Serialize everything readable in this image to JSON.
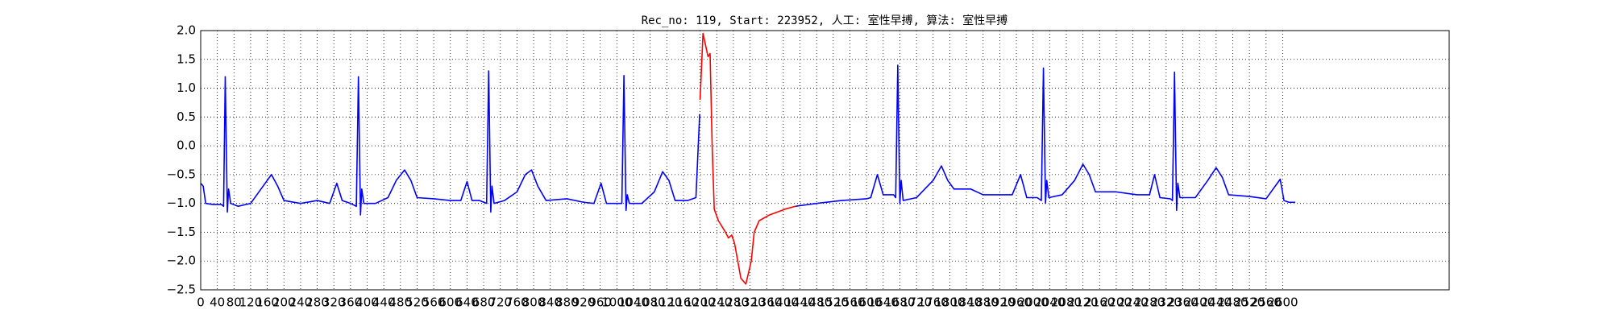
{
  "chart_data": {
    "type": "line",
    "title": "Rec_no: 119, Start: 223952, 人工: 室性早搏, 算法: 室性早搏",
    "x": [
      0,
      6,
      12,
      30,
      50,
      55,
      59,
      64,
      67,
      72,
      90,
      120,
      150,
      170,
      185,
      200,
      240,
      280,
      310,
      327,
      340,
      360,
      374,
      379,
      384,
      387,
      392,
      420,
      450,
      470,
      490,
      505,
      520,
      560,
      600,
      625,
      640,
      652,
      670,
      687,
      692,
      697,
      700,
      705,
      730,
      760,
      780,
      795,
      810,
      830,
      880,
      920,
      945,
      962,
      975,
      1000,
      1012,
      1017,
      1022,
      1025,
      1030,
      1060,
      1090,
      1110,
      1125,
      1140,
      1170,
      1190,
      1199,
      1200,
      1207,
      1219,
      1224,
      1229,
      1234,
      1244,
      1261,
      1268,
      1276,
      1283,
      1298,
      1310,
      1323,
      1330,
      1342,
      1367,
      1404,
      1429,
      1480,
      1540,
      1600,
      1610,
      1626,
      1640,
      1665,
      1670,
      1675,
      1680,
      1683,
      1688,
      1720,
      1760,
      1780,
      1795,
      1810,
      1850,
      1880,
      1920,
      1950,
      1970,
      1985,
      2010,
      2020,
      2025,
      2030,
      2033,
      2038,
      2070,
      2100,
      2120,
      2135,
      2150,
      2200,
      2250,
      2280,
      2292,
      2305,
      2330,
      2335,
      2340,
      2345,
      2348,
      2353,
      2390,
      2420,
      2440,
      2455,
      2470,
      2520,
      2560,
      2594,
      2603,
      2615,
      2630
    ],
    "series": [
      {
        "color": "#0000ff",
        "values": [
          -0.65,
          -0.7,
          -1.0,
          -1.02,
          -1.02,
          -1.05,
          1.2,
          -1.15,
          -0.75,
          -1.0,
          -1.05,
          -1.0,
          -0.7,
          -0.5,
          -0.7,
          -0.95,
          -1.0,
          -0.95,
          -1.0,
          -0.65,
          -0.95,
          -1.0,
          -1.05,
          1.2,
          -1.2,
          -0.75,
          -1.0,
          -1.0,
          -0.9,
          -0.6,
          -0.42,
          -0.6,
          -0.9,
          -0.92,
          -0.95,
          -0.95,
          -0.62,
          -0.95,
          -0.95,
          -1.0,
          1.3,
          -1.15,
          -0.7,
          -1.0,
          -0.95,
          -0.8,
          -0.5,
          -0.42,
          -0.7,
          -0.95,
          -0.92,
          -0.98,
          -1.0,
          -0.65,
          -1.0,
          -1.0,
          -1.0,
          1.22,
          -1.12,
          -0.85,
          -1.0,
          -1.0,
          -0.8,
          -0.45,
          -0.6,
          -0.95,
          -0.95,
          -0.9,
          0.55,
          null,
          null,
          null,
          null,
          null,
          null,
          null,
          null,
          null,
          null,
          null,
          null,
          null,
          null,
          null,
          null,
          null,
          null,
          -1.05,
          -1.0,
          -0.95,
          -0.92,
          -0.9,
          -0.5,
          -0.85,
          -0.85,
          -0.9,
          1.4,
          -1.0,
          -0.6,
          -0.95,
          -0.9,
          -0.6,
          -0.35,
          -0.6,
          -0.75,
          -0.75,
          -0.85,
          -0.85,
          -0.85,
          -0.5,
          -0.9,
          -0.9,
          -0.95,
          1.35,
          -1.0,
          -0.6,
          -0.9,
          -0.85,
          -0.6,
          -0.32,
          -0.5,
          -0.8,
          -0.8,
          -0.85,
          -0.85,
          -0.5,
          -0.9,
          -0.92,
          -0.95,
          1.28,
          -1.12,
          -0.65,
          -0.9,
          -0.9,
          -0.6,
          -0.38,
          -0.55,
          -0.85,
          -0.88,
          -0.92,
          -0.58,
          -0.95,
          -0.98,
          -0.98
        ]
      },
      {
        "color": "#ff0000",
        "values": [
          null,
          null,
          null,
          null,
          null,
          null,
          null,
          null,
          null,
          null,
          null,
          null,
          null,
          null,
          null,
          null,
          null,
          null,
          null,
          null,
          null,
          null,
          null,
          null,
          null,
          null,
          null,
          null,
          null,
          null,
          null,
          null,
          null,
          null,
          null,
          null,
          null,
          null,
          null,
          null,
          null,
          null,
          null,
          null,
          null,
          null,
          null,
          null,
          null,
          null,
          null,
          null,
          null,
          null,
          null,
          null,
          null,
          null,
          null,
          null,
          null,
          null,
          null,
          null,
          null,
          null,
          null,
          null,
          null,
          0.8,
          1.95,
          1.55,
          1.6,
          0.0,
          -1.1,
          -1.3,
          -1.5,
          -1.6,
          -1.55,
          -1.7,
          -2.3,
          -2.4,
          -2.0,
          -1.5,
          -1.3,
          -1.2,
          -1.1,
          -1.05,
          null,
          null,
          null,
          null,
          null,
          null,
          null,
          null,
          null,
          null,
          null,
          null,
          null,
          null,
          null,
          null,
          null,
          null,
          null,
          null,
          null,
          null,
          null,
          null,
          null,
          null,
          null,
          null,
          null,
          null,
          null,
          null,
          null,
          null,
          null,
          null,
          null,
          null,
          null,
          null,
          null,
          null,
          null,
          null,
          null,
          null,
          null,
          null,
          null,
          null,
          null,
          null,
          null,
          null,
          null,
          null
        ]
      }
    ],
    "xlim": [
      0,
      3000
    ],
    "xticks": [
      0,
      40,
      80,
      120,
      160,
      200,
      240,
      280,
      320,
      360,
      400,
      440,
      480,
      520,
      560,
      600,
      640,
      680,
      720,
      760,
      800,
      840,
      880,
      920,
      960,
      1000,
      1040,
      1080,
      1120,
      1160,
      1200,
      1240,
      1280,
      1320,
      1360,
      1400,
      1440,
      1480,
      1520,
      1560,
      1600,
      1640,
      1680,
      1720,
      1760,
      1800,
      1840,
      1880,
      1920,
      1960,
      2000,
      2040,
      2080,
      2120,
      2160,
      2200,
      2240,
      2280,
      2320,
      2360,
      2400,
      2440,
      2480,
      2520,
      2560,
      2600
    ],
    "ylim": [
      -2.5,
      2.0
    ],
    "yticks": [
      {
        "value": -2.5,
        "label": "−2.5"
      },
      {
        "value": -2.0,
        "label": "−2.0"
      },
      {
        "value": -1.5,
        "label": "−1.5"
      },
      {
        "value": -1.0,
        "label": "−1.0"
      },
      {
        "value": -0.5,
        "label": "−0.5"
      },
      {
        "value": 0.0,
        "label": "0.0"
      },
      0.5,
      {
        "value": 1.0,
        "label": "1.0"
      },
      1.5,
      {
        "value": 2.0,
        "label": "2.0"
      }
    ],
    "grid": true
  }
}
